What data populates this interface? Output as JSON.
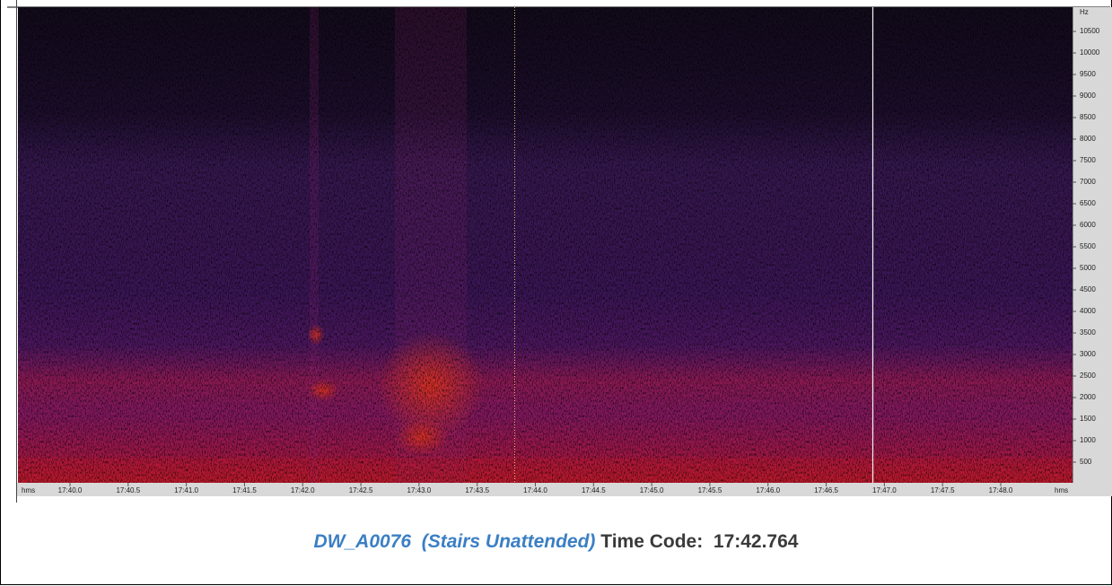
{
  "spectrogram": {
    "y_axis": {
      "unit": "Hz",
      "labels": [
        10500,
        10000,
        9500,
        9000,
        8500,
        8000,
        7500,
        7000,
        6500,
        6000,
        5500,
        5000,
        4500,
        4000,
        3500,
        3000,
        2500,
        2000,
        1500,
        1000,
        500
      ]
    },
    "x_axis": {
      "unit": "hms",
      "labels": [
        "17:40.0",
        "17:40.5",
        "17:41.0",
        "17:41.5",
        "17:42.0",
        "17:42.5",
        "17:43.0",
        "17:43.5",
        "17:44.0",
        "17:44.5",
        "17:45.0",
        "17:45.5",
        "17:46.0",
        "17:46.5",
        "17:47.0",
        "17:47.5",
        "17:48.0"
      ]
    }
  },
  "caption": {
    "file": "DW_A0076  (Stairs Unattended)",
    "label": "Time Code:",
    "time": "17:42.764"
  }
}
